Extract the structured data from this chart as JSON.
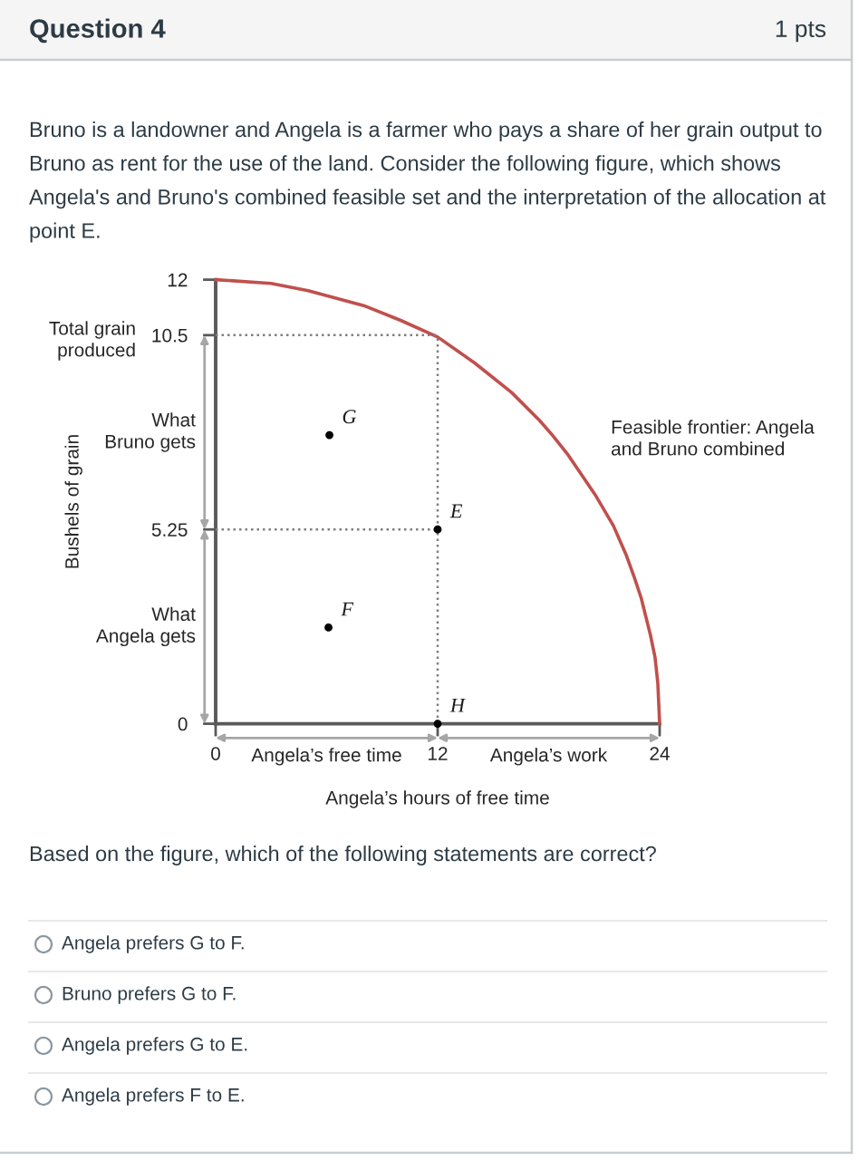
{
  "chart_data": {
    "type": "line",
    "title": "Question 4",
    "xlabel": "Angela’s hours of free time",
    "ylabel": "Bushels of grain",
    "xlim": [
      0,
      24
    ],
    "ylim": [
      0,
      12
    ],
    "xticks": [
      0,
      12,
      24
    ],
    "yticks": [
      0,
      5.25,
      10.5,
      12
    ],
    "series": [
      {
        "name": "Feasible frontier: Angela\nand Bruno combined",
        "color": "#c0504d",
        "x": [
          0,
          3,
          5,
          8,
          10,
          12,
          14,
          16,
          17.5,
          18.2,
          19,
          20.5,
          21.5,
          22.2,
          22.6,
          23,
          23.5,
          23.75,
          23.9,
          24
        ],
        "values": [
          12,
          11.9,
          11.7,
          11.3,
          10.9,
          10.45,
          9.75,
          8.95,
          8.2,
          7.8,
          7.3,
          6.2,
          5.35,
          4.55,
          4.0,
          3.4,
          2.4,
          1.8,
          1.1,
          0
        ]
      },
      {
        "color": "#808080",
        "line_style": "dotted",
        "x": [
          0,
          12
        ],
        "values": [
          10.5,
          10.5
        ]
      },
      {
        "color": "#808080",
        "line_style": "dotted",
        "x": [
          0,
          12
        ],
        "values": [
          5.25,
          5.25
        ]
      },
      {
        "color": "#808080",
        "line_style": "dotted",
        "x": [
          12,
          12
        ],
        "values": [
          0,
          10.5
        ]
      },
      {
        "type": "scatter",
        "marker": "circle",
        "color": "#000000",
        "x": [
          6.15,
          12,
          6.1,
          12
        ],
        "values": [
          7.8,
          5.25,
          2.6,
          0
        ]
      }
    ],
    "annotations": [
      "1 pts",
      "Bruno is a landowner and Angela is a farmer who pays a share of her grain output to Bruno as rent for the use of the land. Consider the following figure, which shows Angela's and Bruno's combined feasible set and the interpretation of the allocation at point E.",
      "Total grain\nproduced",
      "What\nBruno gets",
      "What\nAngela gets",
      "Angela’s free time",
      "Angela’s work",
      "Based on the figure, which of the following statements are correct?",
      "Angela prefers G to F.",
      "Bruno prefers G to F.",
      "Angela prefers G to E.",
      "Angela prefers F to E.",
      {
        "text": "G",
        "x": 6.15,
        "y": 7.8
      },
      {
        "text": "E",
        "x": 12,
        "y": 5.25
      },
      {
        "text": "F",
        "x": 6.1,
        "y": 2.6
      },
      {
        "text": "H",
        "x": 12,
        "y": 0
      }
    ]
  }
}
